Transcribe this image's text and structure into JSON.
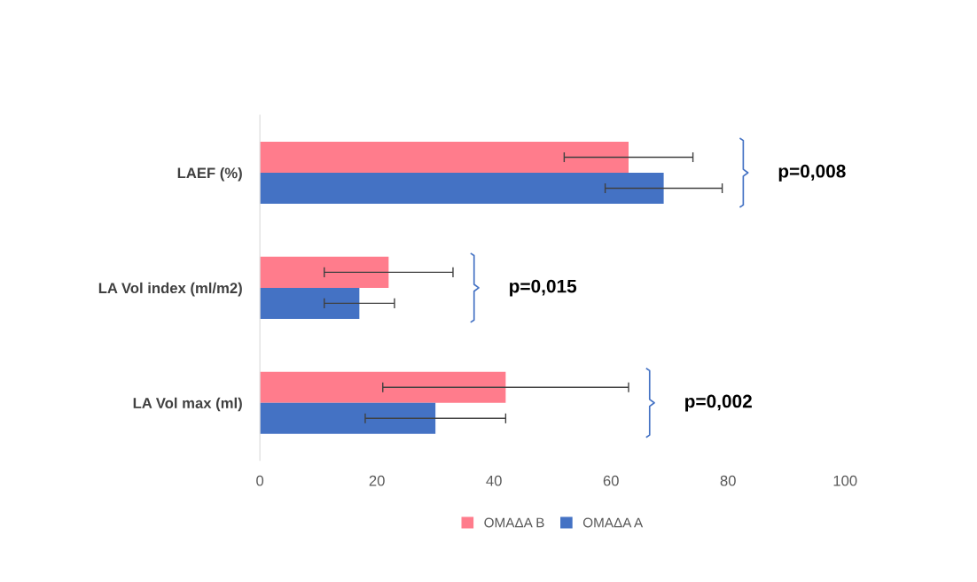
{
  "chart_data": {
    "type": "bar",
    "orientation": "horizontal",
    "categories": [
      "LAEF (%)",
      "LA Vol index (ml/m2)",
      "LA Vol max (ml)"
    ],
    "series": [
      {
        "name": "ΟΜΑΔΑ Β",
        "color": "#ff7c8c",
        "values": [
          63,
          22,
          42
        ],
        "errors": [
          11,
          11,
          21
        ]
      },
      {
        "name": "ΟΜΑΔΑ Α",
        "color": "#4472c4",
        "values": [
          69,
          17,
          30
        ],
        "errors": [
          10,
          6,
          12
        ]
      }
    ],
    "xlim": [
      0,
      100
    ],
    "xticks": [
      0,
      20,
      40,
      60,
      80,
      100
    ],
    "annotations": [
      "p=0,008",
      "p=0,015",
      "p=0,002"
    ],
    "legend": "bottom",
    "grid": false
  }
}
